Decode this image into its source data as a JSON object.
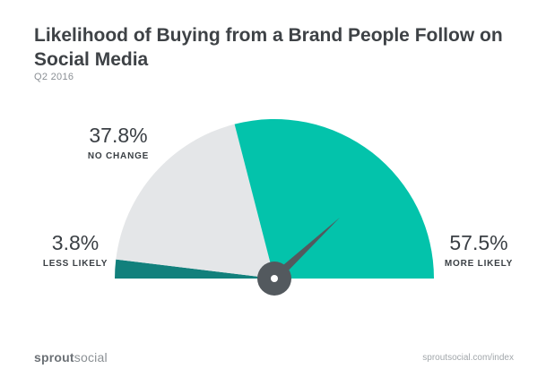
{
  "chart_data": {
    "type": "pie",
    "title": "Likelihood of Buying from a Brand People Follow on Social Media",
    "subtitle": "Q2 2016",
    "slices": [
      {
        "label": "LESS LIKELY",
        "value": 3.8,
        "value_label": "3.8%",
        "color": "#12807c"
      },
      {
        "label": "NO CHANGE",
        "value": 37.8,
        "value_label": "37.8%",
        "color": "#e4e6e8"
      },
      {
        "label": "MORE LIKELY",
        "value": 57.5,
        "value_label": "57.5%",
        "color": "#03c3ab"
      }
    ],
    "needle_color": "#53595e"
  },
  "footer": {
    "logo_bold": "sprout",
    "logo_light": "social",
    "source": "sproutsocial.com/index"
  }
}
